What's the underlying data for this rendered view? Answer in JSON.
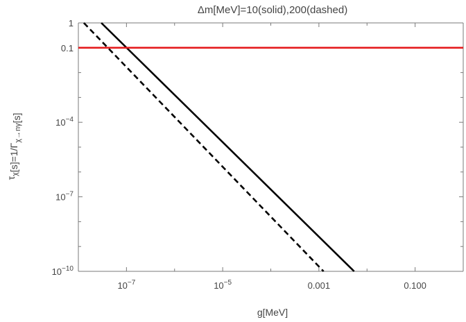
{
  "chart_data": {
    "type": "line",
    "title": "Δm[MeV]=10(solid),200(dashed)",
    "xlabel": "g[MeV]",
    "ylabel": "τ_χ[s]=1/Γ_χ→nγ[s]",
    "x_scale": "log",
    "y_scale": "log",
    "xlim": [
      1e-08,
      1
    ],
    "ylim": [
      1e-10,
      1
    ],
    "x_ticks": [
      {
        "value": 1e-07,
        "base": "10",
        "exp": "−7",
        "label": ""
      },
      {
        "value": 1e-05,
        "base": "10",
        "exp": "−5",
        "label": ""
      },
      {
        "value": 0.001,
        "base": "",
        "exp": "",
        "label": "0.001"
      },
      {
        "value": 0.1,
        "base": "",
        "exp": "",
        "label": "0.100"
      }
    ],
    "y_ticks": [
      {
        "value": 1,
        "base": "",
        "exp": "",
        "label": "1"
      },
      {
        "value": 0.1,
        "base": "",
        "exp": "",
        "label": "0.1"
      },
      {
        "value": 0.0001,
        "base": "10",
        "exp": "−4",
        "label": ""
      },
      {
        "value": 1e-07,
        "base": "10",
        "exp": "−7",
        "label": ""
      },
      {
        "value": 1e-10,
        "base": "10",
        "exp": "−10",
        "label": ""
      }
    ],
    "series": [
      {
        "style": "solid",
        "color": "#000000",
        "x": [
          3e-08,
          0.0054
        ],
        "y": [
          1,
          1e-10
        ]
      },
      {
        "style": "dashed",
        "color": "#000000",
        "x": [
          1.3e-08,
          0.00125
        ],
        "y": [
          1,
          1e-10
        ]
      },
      {
        "style": "solid",
        "color": "#e41a1c",
        "x": [
          1e-08,
          1
        ],
        "y": [
          0.1,
          0.1
        ]
      }
    ],
    "grid": false,
    "frame": true
  }
}
